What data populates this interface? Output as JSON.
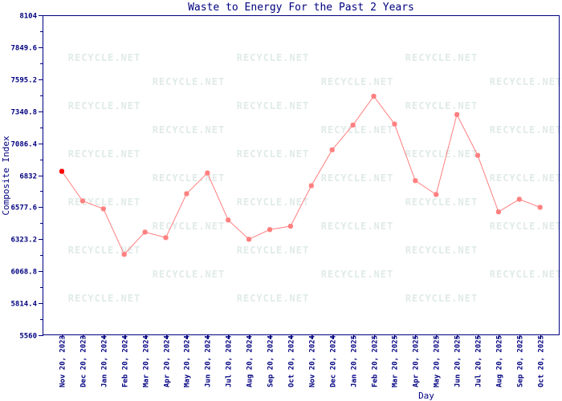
{
  "chart_data": {
    "type": "line",
    "title": "Waste to Energy For the Past 2 Years",
    "xlabel": "Day",
    "ylabel": "Composite Index",
    "ylim": [
      5560,
      8104
    ],
    "yticks": [
      "5560",
      "5814.4",
      "6068.8",
      "6323.2",
      "6577.6",
      "6832",
      "7086.4",
      "7340.8",
      "7595.2",
      "7849.6",
      "8104"
    ],
    "grid": false,
    "categories": [
      "Nov 20, 2023",
      "Dec 20, 2023",
      "Jan 20, 2024",
      "Feb 20, 2024",
      "Mar 20, 2024",
      "Apr 20, 2024",
      "May 20, 2024",
      "Jun 20, 2024",
      "Jul 20, 2024",
      "Aug 20, 2024",
      "Sep 20, 2024",
      "Oct 20, 2024",
      "Nov 20, 2024",
      "Dec 20, 2024",
      "Jan 20, 2025",
      "Feb 20, 2025",
      "Mar 20, 2025",
      "Apr 20, 2025",
      "May 20, 2025",
      "Jun 20, 2025",
      "Jul 20, 2025",
      "Aug 20, 2025",
      "Sep 20, 2025",
      "Oct 20, 2025"
    ],
    "series": [
      {
        "values": [
          6863,
          6628,
          6565,
          6203,
          6380,
          6336,
          6685,
          6850,
          6476,
          6323,
          6400,
          6427,
          6749,
          7034,
          7231,
          7460,
          7239,
          6789,
          6679,
          7314,
          6990,
          6541,
          6641,
          6577
        ]
      }
    ],
    "colors": {
      "axis": "#000080",
      "line": "#ff7f7f",
      "marker": "#ff8080",
      "first_marker": "#ff0000",
      "watermark": "#e0ebe8"
    },
    "watermark": "RECYCLE.NET"
  }
}
